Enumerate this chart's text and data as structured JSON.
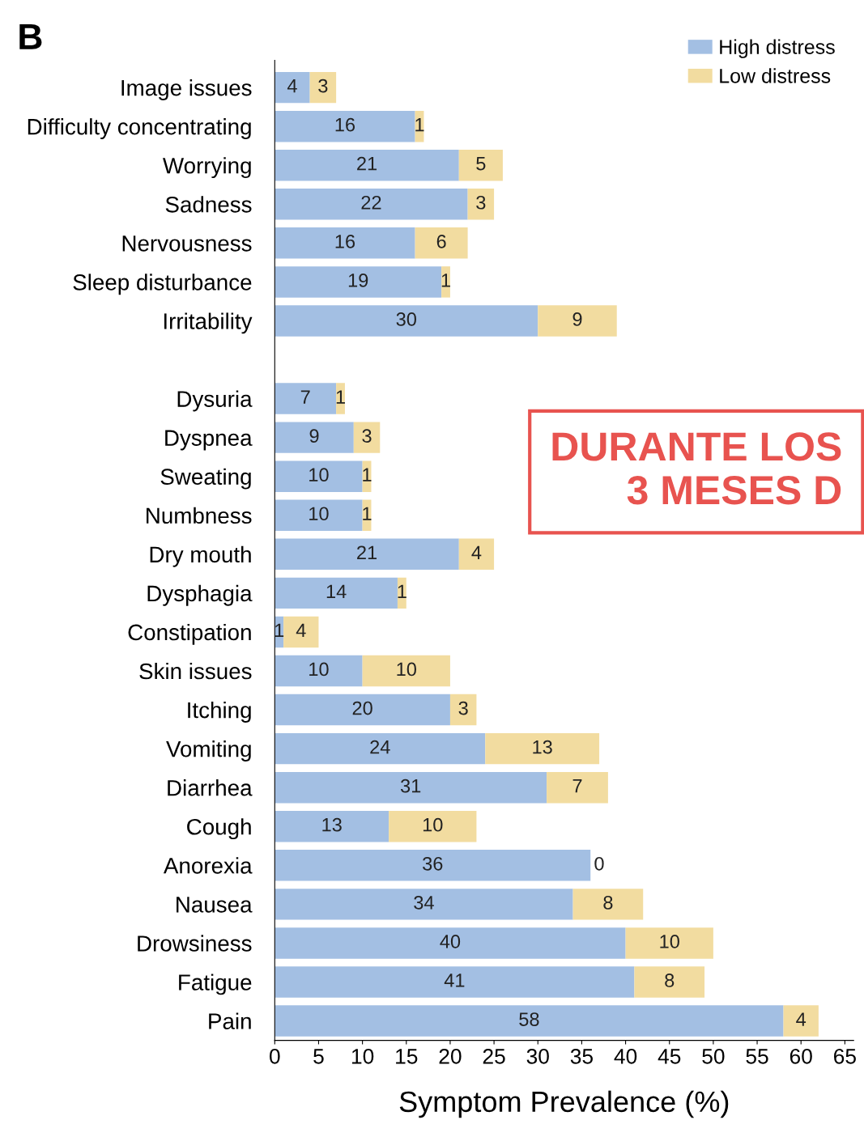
{
  "chart_data": {
    "type": "bar",
    "orientation": "horizontal",
    "stacked": true,
    "title": "B",
    "xlabel": "Symptom Prevalence (%)",
    "categories": [
      "Image issues",
      "Difficulty concentrating",
      "Worrying",
      "Sadness",
      "Nervousness",
      "Sleep disturbance",
      "Irritability",
      null,
      "Dysuria",
      "Dyspnea",
      "Sweating",
      "Numbness",
      "Dry mouth",
      "Dysphagia",
      "Constipation",
      "Skin issues",
      "Itching",
      "Vomiting",
      "Diarrhea",
      "Cough",
      "Anorexia",
      "Nausea",
      "Drowsiness",
      "Fatigue",
      "Pain"
    ],
    "series": [
      {
        "name": "High distress",
        "color": "#a3bfe3",
        "values": [
          4,
          16,
          21,
          22,
          16,
          19,
          30,
          null,
          7,
          9,
          10,
          10,
          21,
          14,
          1,
          10,
          20,
          24,
          31,
          13,
          36,
          34,
          40,
          41,
          58
        ]
      },
      {
        "name": "Low distress",
        "color": "#f2dca0",
        "values": [
          3,
          1,
          5,
          3,
          6,
          1,
          9,
          null,
          1,
          3,
          1,
          1,
          4,
          1,
          4,
          10,
          3,
          13,
          7,
          10,
          0,
          8,
          10,
          8,
          4
        ]
      }
    ],
    "xlim": [
      0,
      66
    ],
    "xticks": [
      0,
      5,
      10,
      15,
      20,
      25,
      30,
      35,
      40,
      45,
      50,
      55,
      60,
      65
    ],
    "data_labels": true,
    "legend": "top right",
    "grid": false,
    "annotations": [
      "DURANTE LOS\n3 MESES D"
    ]
  }
}
